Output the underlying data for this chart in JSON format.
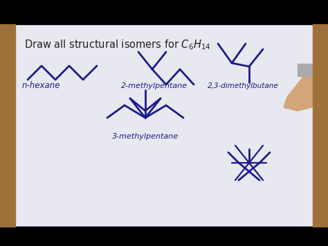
{
  "bg_white": "#e8e8f0",
  "border_wood": "#a0703a",
  "black_bar": "#000000",
  "line_color": "#1a1a8c",
  "title_color": "#222222",
  "lw": 2.0,
  "title": "Draw all structural isomers for $C_6H_{14}$",
  "labels": {
    "n_hexane": "n-hexane",
    "mp2": "2-methylpentane",
    "dmb23": "2,3-dimethylbutane",
    "mp3": "3-methylpentane"
  }
}
